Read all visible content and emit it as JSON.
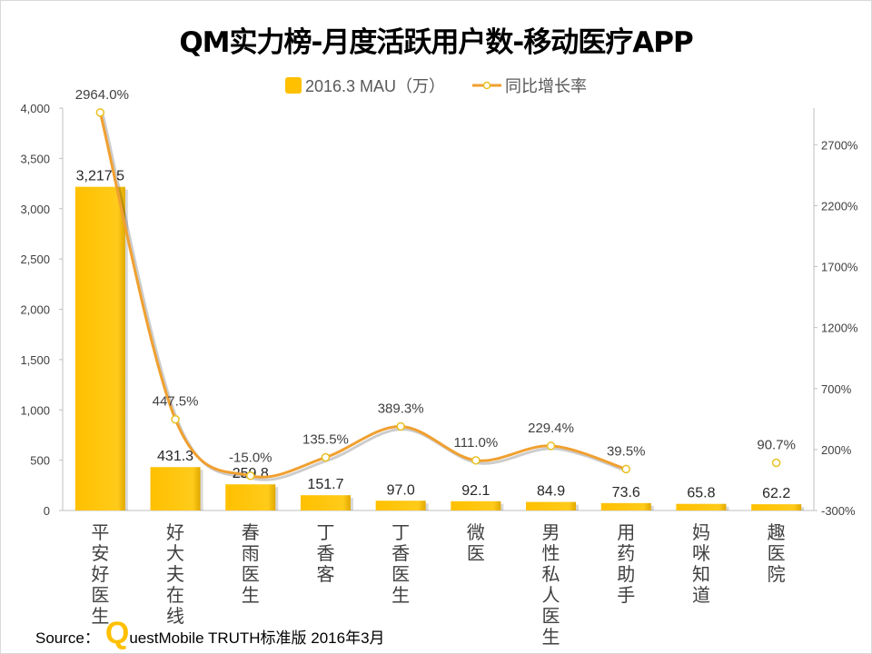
{
  "chart_data": {
    "type": "bar+line",
    "title": "QM实力榜-月度活跃用户数-移动医疗APP",
    "categories": [
      "平安好医生",
      "好大夫在线",
      "春雨医生",
      "丁香客",
      "丁香医生",
      "微医",
      "男性私人医生",
      "用药助手",
      "妈咪知道",
      "趣医院"
    ],
    "series": [
      {
        "name": "2016.3 MAU（万）",
        "type": "bar",
        "axis": "left",
        "values": [
          3217.5,
          431.3,
          259.8,
          151.7,
          97.0,
          92.1,
          84.9,
          73.6,
          65.8,
          62.2
        ],
        "labels": [
          "3,217.5",
          "431.3",
          "259.8",
          "151.7",
          "97.0",
          "92.1",
          "84.9",
          "73.6",
          "65.8",
          "62.2"
        ],
        "color": "#FFC000"
      },
      {
        "name": "同比增长率",
        "type": "line",
        "axis": "right",
        "values": [
          2964.0,
          447.5,
          -15.0,
          135.5,
          389.3,
          111.0,
          229.4,
          39.5,
          null,
          90.7
        ],
        "labels": [
          "2964.0%",
          "447.5%",
          "-15.0%",
          "135.5%",
          "389.3%",
          "111.0%",
          "229.4%",
          "39.5%",
          "",
          "90.7%"
        ],
        "color": "#F0A030"
      }
    ],
    "left_axis": {
      "ylim": [
        0,
        4000
      ],
      "ticks": [
        0,
        500,
        1000,
        1500,
        2000,
        2500,
        3000,
        3500,
        4000
      ],
      "tick_labels": [
        "0",
        "500",
        "1,000",
        "1,500",
        "2,000",
        "2,500",
        "3,000",
        "3,500",
        "4,000"
      ]
    },
    "right_axis": {
      "ylim": [
        -300,
        3000
      ],
      "ticks": [
        -300,
        200,
        700,
        1200,
        1700,
        2200,
        2700
      ],
      "tick_labels": [
        "-300%",
        "200%",
        "700%",
        "1200%",
        "1700%",
        "2200%",
        "2700%"
      ]
    },
    "grid": false,
    "legend": "top"
  },
  "source": {
    "prefix": "Source：",
    "logo_letter": "Q",
    "text": "uestMobile TRUTH标准版 2016年3月"
  }
}
